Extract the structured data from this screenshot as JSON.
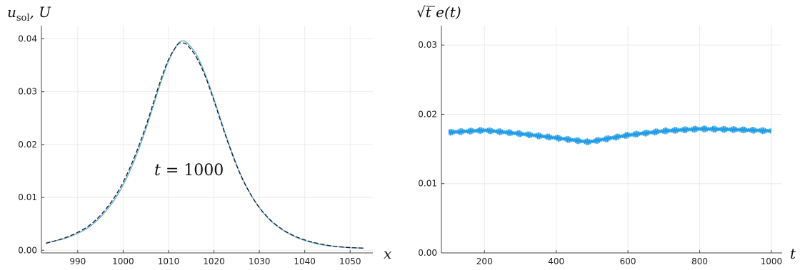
{
  "chart_data": [
    {
      "type": "line",
      "ylabel": "u_sol, U",
      "xlabel": "x",
      "annotation": "t = 1000",
      "xlim": [
        982,
        1055
      ],
      "ylim": [
        -0.0005,
        0.0425
      ],
      "xticks": [
        990,
        1000,
        1010,
        1020,
        1030,
        1040,
        1050
      ],
      "yticks": [
        0.0,
        0.01,
        0.02,
        0.03,
        0.04
      ],
      "ytick_labels": [
        "0.00",
        "0.01",
        "0.02",
        "0.03",
        "0.04"
      ],
      "grid": true,
      "series": [
        {
          "style": "solid",
          "color": "#74b9e0",
          "x": [
            983,
            987,
            990,
            993,
            996,
            999,
            1002,
            1005,
            1008,
            1010,
            1012,
            1013,
            1014,
            1016,
            1018,
            1020,
            1023,
            1026,
            1029,
            1032,
            1035,
            1038,
            1041,
            1044,
            1047,
            1050,
            1053
          ],
          "y": [
            0.0014,
            0.0022,
            0.0032,
            0.0047,
            0.0072,
            0.0108,
            0.016,
            0.0229,
            0.031,
            0.0358,
            0.039,
            0.0396,
            0.0393,
            0.0372,
            0.0335,
            0.0286,
            0.0208,
            0.0141,
            0.0093,
            0.006,
            0.0039,
            0.0025,
            0.0016,
            0.001,
            0.0007,
            0.0005,
            0.0004
          ]
        },
        {
          "style": "dashed",
          "color": "#1a1a1a",
          "x": [
            983,
            987,
            990,
            993,
            996,
            999,
            1002,
            1005,
            1008,
            1010,
            1012,
            1013,
            1014,
            1016,
            1018,
            1020,
            1023,
            1026,
            1029,
            1032,
            1035,
            1038,
            1041,
            1044,
            1047,
            1050,
            1053
          ],
          "y": [
            0.0013,
            0.0023,
            0.0034,
            0.005,
            0.0076,
            0.0113,
            0.0166,
            0.0235,
            0.0315,
            0.0361,
            0.0389,
            0.0392,
            0.0389,
            0.0367,
            0.0331,
            0.0283,
            0.0206,
            0.014,
            0.0093,
            0.0061,
            0.004,
            0.0026,
            0.0017,
            0.0011,
            0.0007,
            0.0005,
            0.0004
          ]
        }
      ]
    },
    {
      "type": "line",
      "ylabel": "√t e(t)",
      "xlabel": "t",
      "xlim": [
        80,
        1030
      ],
      "ylim": [
        0.0,
        0.0328
      ],
      "xticks": [
        200,
        400,
        600,
        800,
        1000
      ],
      "yticks": [
        0.0,
        0.01,
        0.02,
        0.03
      ],
      "ytick_labels": [
        "0.00",
        "0.01",
        "0.02",
        "0.03"
      ],
      "grid": true,
      "series": [
        {
          "style": "solid",
          "color": "#1f9be6",
          "band_x": [
            100,
            200,
            300,
            400,
            490,
            500,
            600,
            700,
            800,
            900,
            1000
          ],
          "band_y_mid": [
            0.0174,
            0.0177,
            0.0172,
            0.0166,
            0.016,
            0.0161,
            0.017,
            0.0176,
            0.0179,
            0.0178,
            0.0176
          ],
          "band_amplitude": 0.0005
        }
      ]
    }
  ]
}
